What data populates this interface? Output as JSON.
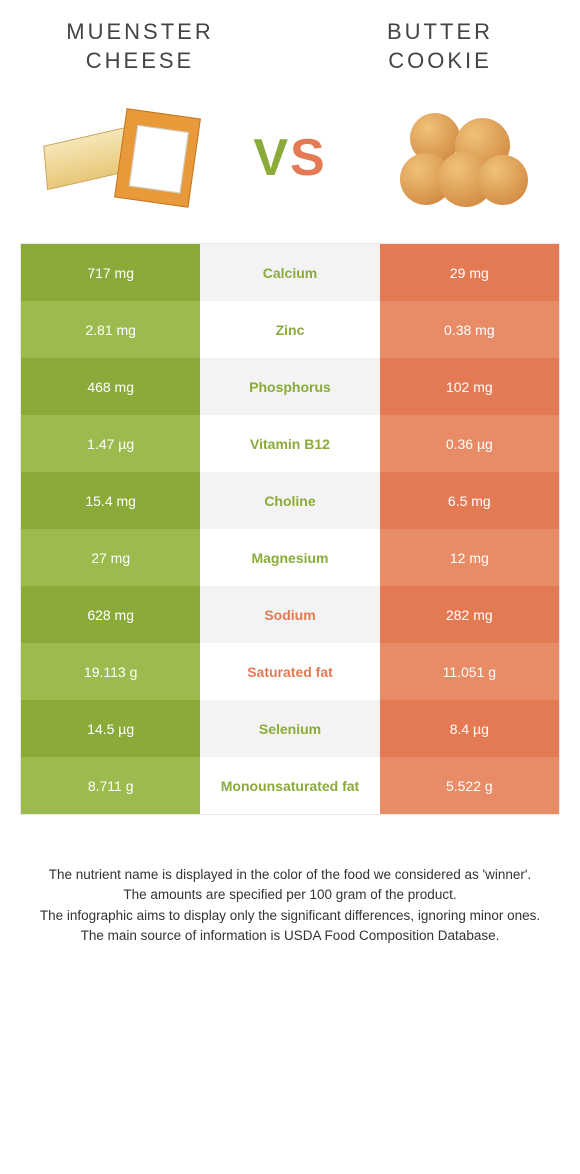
{
  "colors": {
    "left_bg_dark": "#8aab3a",
    "left_bg_light": "#9bbb4e",
    "mid_bg_dark": "#f3f3f3",
    "mid_bg_light": "#ffffff",
    "right_bg_dark": "#e37a53",
    "right_bg_light": "#e88b67",
    "nutrient_left_color": "#8aab3a",
    "nutrient_right_color": "#e37a53"
  },
  "foods": {
    "left": {
      "name": "MUENSTER CHEESE"
    },
    "right": {
      "name": "BUTTER COOKIE"
    }
  },
  "vs": "VS",
  "rows": [
    {
      "left": "717 mg",
      "nutrient": "Calcium",
      "right": "29 mg",
      "winner": "left"
    },
    {
      "left": "2.81 mg",
      "nutrient": "Zinc",
      "right": "0.38 mg",
      "winner": "left"
    },
    {
      "left": "468 mg",
      "nutrient": "Phosphorus",
      "right": "102 mg",
      "winner": "left"
    },
    {
      "left": "1.47 µg",
      "nutrient": "Vitamin B12",
      "right": "0.36 µg",
      "winner": "left"
    },
    {
      "left": "15.4 mg",
      "nutrient": "Choline",
      "right": "6.5 mg",
      "winner": "left"
    },
    {
      "left": "27 mg",
      "nutrient": "Magnesium",
      "right": "12 mg",
      "winner": "left"
    },
    {
      "left": "628 mg",
      "nutrient": "Sodium",
      "right": "282 mg",
      "winner": "right"
    },
    {
      "left": "19.113 g",
      "nutrient": "Saturated fat",
      "right": "11.051 g",
      "winner": "right"
    },
    {
      "left": "14.5 µg",
      "nutrient": "Selenium",
      "right": "8.4 µg",
      "winner": "left"
    },
    {
      "left": "8.711 g",
      "nutrient": "Monounsaturated fat",
      "right": "5.522 g",
      "winner": "left"
    }
  ],
  "footnotes": [
    "The nutrient name is displayed in the color of the food we considered as 'winner'.",
    "The amounts are specified per 100 gram of the product.",
    "The infographic aims to display only the significant differences, ignoring minor ones.",
    "The main source of information is USDA Food Composition Database."
  ]
}
